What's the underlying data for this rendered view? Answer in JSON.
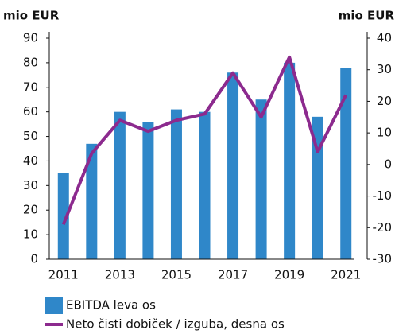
{
  "chart_data": {
    "type": "bar_line",
    "ylabel": "mio EUR",
    "y2label": "mio EUR",
    "categories": [
      "2011",
      null,
      "2013",
      null,
      "2015",
      null,
      "2017",
      null,
      "2019",
      null,
      "2021"
    ],
    "series": [
      {
        "name": "EBITDA leva os",
        "type": "bar",
        "color": "#2f87c9",
        "axis": "y",
        "values": [
          35,
          47,
          60,
          56,
          61,
          60,
          76,
          65,
          80,
          58,
          78
        ]
      },
      {
        "name": "Neto čisti dobiček / izguba, desna os",
        "type": "line",
        "color": "#8c2a8e",
        "axis": "y2",
        "values": [
          -19,
          3.5,
          14,
          10.5,
          14,
          16,
          29,
          15,
          34,
          4,
          22
        ]
      }
    ],
    "ylim": [
      0,
      90
    ],
    "yticks": [
      0,
      10,
      20,
      30,
      40,
      50,
      60,
      70,
      80,
      90
    ],
    "y2lim": [
      -30,
      40
    ],
    "y2ticks": [
      -30,
      -20,
      -10,
      0,
      10,
      20,
      30,
      40
    ]
  }
}
